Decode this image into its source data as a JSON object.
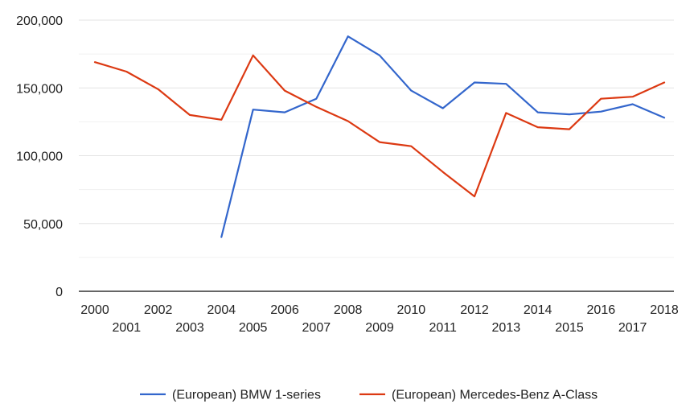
{
  "chart_data": {
    "type": "line",
    "title": "",
    "xlabel": "",
    "ylabel": "",
    "x": [
      2000,
      2001,
      2002,
      2003,
      2004,
      2005,
      2006,
      2007,
      2008,
      2009,
      2010,
      2011,
      2012,
      2013,
      2014,
      2015,
      2016,
      2017,
      2018
    ],
    "x_tick_labels": [
      "2000",
      "2001",
      "2002",
      "2003",
      "2004",
      "2005",
      "2006",
      "2007",
      "2008",
      "2009",
      "2010",
      "2011",
      "2012",
      "2013",
      "2014",
      "2015",
      "2016",
      "2017",
      "2018"
    ],
    "ylim": [
      0,
      200000
    ],
    "y_ticks": [
      0,
      50000,
      100000,
      150000,
      200000
    ],
    "y_tick_labels": [
      "0",
      "50,000",
      "100,000",
      "150,000",
      "200,000"
    ],
    "grid": true,
    "legend_position": "bottom",
    "series": [
      {
        "name": "(European) BMW 1-series",
        "color": "#3366cc",
        "values": [
          null,
          null,
          null,
          null,
          40000,
          134000,
          132000,
          142000,
          188000,
          174000,
          148000,
          135000,
          154000,
          153000,
          132000,
          130500,
          132500,
          138000,
          128000
        ]
      },
      {
        "name": "(European) Mercedes-Benz A-Class",
        "color": "#dc3912",
        "values": [
          169000,
          162000,
          149000,
          130000,
          126500,
          174000,
          148000,
          136000,
          125500,
          110000,
          107000,
          88000,
          70000,
          131500,
          121000,
          119500,
          142000,
          143500,
          154000
        ]
      }
    ]
  }
}
